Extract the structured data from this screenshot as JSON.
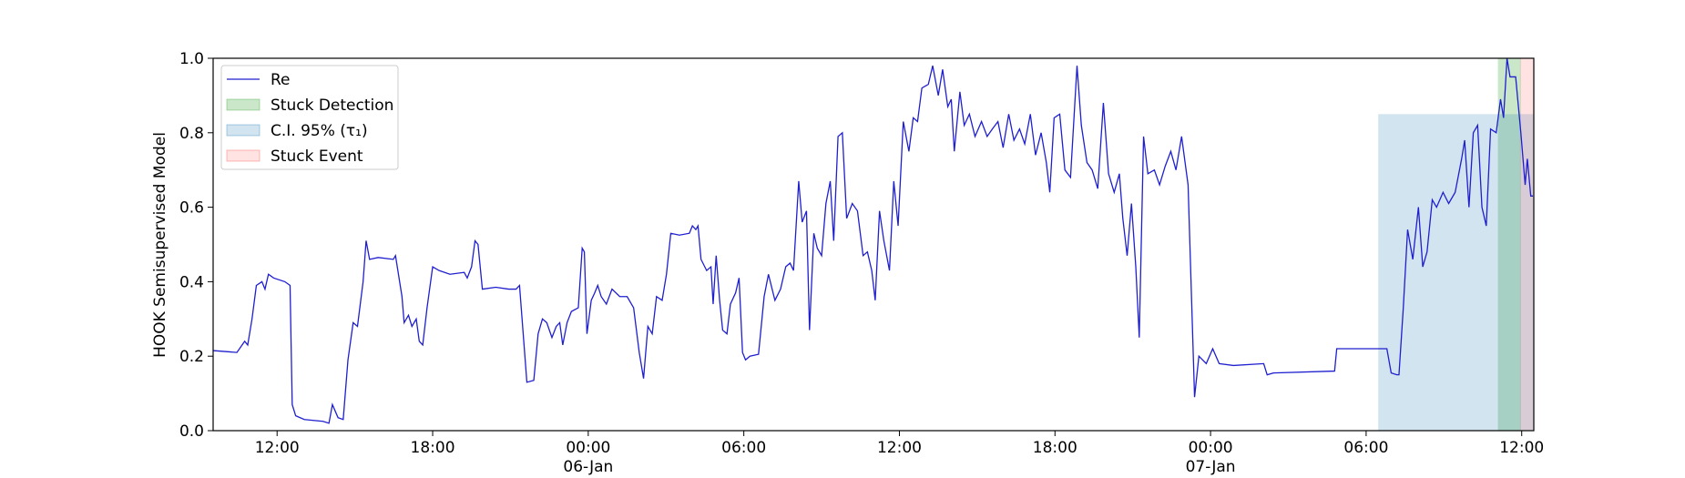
{
  "chart_data": {
    "type": "line",
    "ylabel": "HOOK Semisupervised Model",
    "xlim": [
      "1900-01-05 09:32",
      "1900-01-07 12:28"
    ],
    "xticks": [
      {
        "value": "1900-01-05 12:00",
        "label": "12:00"
      },
      {
        "value": "1900-01-05 18:00",
        "label": "18:00"
      },
      {
        "value": "1900-01-06 00:00",
        "label": "00:00\n06-Jan\n1900"
      },
      {
        "value": "1900-01-06 06:00",
        "label": "06:00"
      },
      {
        "value": "1900-01-06 12:00",
        "label": "12:00"
      },
      {
        "value": "1900-01-06 18:00",
        "label": "18:00"
      },
      {
        "value": "1900-01-07 00:00",
        "label": "00:00\n07-Jan"
      },
      {
        "value": "1900-01-07 06:00",
        "label": "06:00"
      },
      {
        "value": "1900-01-07 12:00",
        "label": "12:00"
      }
    ],
    "ylim": [
      0,
      1
    ],
    "yticks": [
      {
        "value": 0,
        "label": "0.0"
      },
      {
        "value": 0.2,
        "label": "0.2"
      },
      {
        "value": 0.4,
        "label": "0.4"
      },
      {
        "value": 0.6,
        "label": "0.6"
      },
      {
        "value": 0.8,
        "label": "0.8"
      },
      {
        "value": 1,
        "label": "1.0"
      }
    ],
    "legend": "upper left",
    "series": [
      {
        "name": "Re",
        "color": "#1f1fcf",
        "x": [
          "1900-01-05 09:32",
          "1900-01-05 10:27",
          "1900-01-05 10:45",
          "1900-01-05 10:52",
          "1900-01-05 11:02",
          "1900-01-05 11:12",
          "1900-01-05 11:25",
          "1900-01-05 11:32",
          "1900-01-05 11:40",
          "1900-01-05 11:52",
          "1900-01-05 12:18",
          "1900-01-05 12:30",
          "1900-01-05 12:35",
          "1900-01-05 12:43",
          "1900-01-05 13:03",
          "1900-01-05 13:46",
          "1900-01-05 14:00",
          "1900-01-05 14:08",
          "1900-01-05 14:21",
          "1900-01-05 14:33",
          "1900-01-05 14:44",
          "1900-01-05 14:56",
          "1900-01-05 15:06",
          "1900-01-05 15:19",
          "1900-01-05 15:26",
          "1900-01-05 15:34",
          "1900-01-05 15:54",
          "1900-01-05 16:29",
          "1900-01-05 16:34",
          "1900-01-05 16:49",
          "1900-01-05 16:54",
          "1900-01-05 17:04",
          "1900-01-05 17:12",
          "1900-01-05 17:22",
          "1900-01-05 17:29",
          "1900-01-05 17:37",
          "1900-01-05 17:47",
          "1900-01-05 18:00",
          "1900-01-05 18:15",
          "1900-01-05 18:40",
          "1900-01-05 19:13",
          "1900-01-05 19:20",
          "1900-01-05 19:30",
          "1900-01-05 19:38",
          "1900-01-05 19:45",
          "1900-01-05 19:55",
          "1900-01-05 20:26",
          "1900-01-05 20:56",
          "1900-01-05 21:13",
          "1900-01-05 21:21",
          "1900-01-05 21:38",
          "1900-01-05 21:54",
          "1900-01-05 22:04",
          "1900-01-05 22:14",
          "1900-01-05 22:24",
          "1900-01-05 22:36",
          "1900-01-05 22:46",
          "1900-01-05 22:54",
          "1900-01-05 23:01",
          "1900-01-05 23:11",
          "1900-01-05 23:21",
          "1900-01-05 23:37",
          "1900-01-05 23:46",
          "1900-01-05 23:51",
          "1900-01-05 23:57",
          "1900-01-06 00:07",
          "1900-01-06 00:15",
          "1900-01-06 00:22",
          "1900-01-06 00:30",
          "1900-01-06 00:42",
          "1900-01-06 00:55",
          "1900-01-06 01:13",
          "1900-01-06 01:30",
          "1900-01-06 01:45",
          "1900-01-06 01:58",
          "1900-01-06 02:08",
          "1900-01-06 02:18",
          "1900-01-06 02:28",
          "1900-01-06 02:38",
          "1900-01-06 02:51",
          "1900-01-06 03:01",
          "1900-01-06 03:11",
          "1900-01-06 03:31",
          "1900-01-06 03:54",
          "1900-01-06 04:01",
          "1900-01-06 04:09",
          "1900-01-06 04:14",
          "1900-01-06 04:21",
          "1900-01-06 04:34",
          "1900-01-06 04:44",
          "1900-01-06 04:49",
          "1900-01-06 04:56",
          "1900-01-06 05:04",
          "1900-01-06 05:11",
          "1900-01-06 05:21",
          "1900-01-06 05:29",
          "1900-01-06 05:41",
          "1900-01-06 05:49",
          "1900-01-06 05:57",
          "1900-01-06 06:04",
          "1900-01-06 06:14",
          "1900-01-06 06:34",
          "1900-01-06 06:47",
          "1900-01-06 06:57",
          "1900-01-06 07:12",
          "1900-01-06 07:25",
          "1900-01-06 07:37",
          "1900-01-06 07:47",
          "1900-01-06 07:55",
          "1900-01-06 08:07",
          "1900-01-06 08:15",
          "1900-01-06 08:25",
          "1900-01-06 08:32",
          "1900-01-06 08:42",
          "1900-01-06 08:50",
          "1900-01-06 09:00",
          "1900-01-06 09:10",
          "1900-01-06 09:20",
          "1900-01-06 09:28",
          "1900-01-06 09:38",
          "1900-01-06 09:48",
          "1900-01-06 09:58",
          "1900-01-06 10:11",
          "1900-01-06 10:23",
          "1900-01-06 10:36",
          "1900-01-06 10:46",
          "1900-01-06 10:56",
          "1900-01-06 11:04",
          "1900-01-06 11:14",
          "1900-01-06 11:24",
          "1900-01-06 11:37",
          "1900-01-06 11:47",
          "1900-01-06 11:57",
          "1900-01-06 12:09",
          "1900-01-06 12:22",
          "1900-01-06 12:32",
          "1900-01-06 12:42",
          "1900-01-06 12:52",
          "1900-01-06 13:07",
          "1900-01-06 13:17",
          "1900-01-06 13:30",
          "1900-01-06 13:40",
          "1900-01-06 13:52",
          "1900-01-06 14:00",
          "1900-01-06 14:07",
          "1900-01-06 14:20",
          "1900-01-06 14:30",
          "1900-01-06 14:42",
          "1900-01-06 14:55",
          "1900-01-06 15:10",
          "1900-01-06 15:23",
          "1900-01-06 15:35",
          "1900-01-06 15:48",
          "1900-01-06 16:00",
          "1900-01-06 16:13",
          "1900-01-06 16:25",
          "1900-01-06 16:38",
          "1900-01-06 16:50",
          "1900-01-06 17:03",
          "1900-01-06 17:15",
          "1900-01-06 17:28",
          "1900-01-06 17:40",
          "1900-01-06 17:48",
          "1900-01-06 17:58",
          "1900-01-06 18:11",
          "1900-01-06 18:23",
          "1900-01-06 18:36",
          "1900-01-06 18:51",
          "1900-01-06 19:01",
          "1900-01-06 19:14",
          "1900-01-06 19:26",
          "1900-01-06 19:39",
          "1900-01-06 19:52",
          "1900-01-06 20:04",
          "1900-01-06 20:17",
          "1900-01-06 20:29",
          "1900-01-06 20:37",
          "1900-01-06 20:47",
          "1900-01-06 20:57",
          "1900-01-06 21:07",
          "1900-01-06 21:15",
          "1900-01-06 21:25",
          "1900-01-06 21:35",
          "1900-01-06 21:50",
          "1900-01-06 22:02",
          "1900-01-06 22:15",
          "1900-01-06 22:28",
          "1900-01-06 22:40",
          "1900-01-06 22:53",
          "1900-01-06 23:08",
          "1900-01-06 23:23",
          "1900-01-06 23:33",
          "1900-01-06 23:50",
          "1900-01-07 00:05",
          "1900-01-07 00:20",
          "1900-01-07 00:53",
          "1900-01-07 02:03",
          "1900-01-07 02:11",
          "1900-01-07 02:26",
          "1900-01-07 04:47",
          "1900-01-07 04:52",
          "1900-01-07 06:48",
          "1900-01-07 06:58",
          "1900-01-07 07:11",
          "1900-01-07 07:16",
          "1900-01-07 07:26",
          "1900-01-07 07:36",
          "1900-01-07 07:48",
          "1900-01-07 08:01",
          "1900-01-07 08:11",
          "1900-01-07 08:21",
          "1900-01-07 08:33",
          "1900-01-07 08:43",
          "1900-01-07 08:58",
          "1900-01-07 09:11",
          "1900-01-07 09:26",
          "1900-01-07 09:41",
          "1900-01-07 09:48",
          "1900-01-07 09:58",
          "1900-01-07 10:08",
          "1900-01-07 10:18",
          "1900-01-07 10:28",
          "1900-01-07 10:38",
          "1900-01-07 10:48",
          "1900-01-07 11:01",
          "1900-01-07 11:11",
          "1900-01-07 11:18",
          "1900-01-07 11:26",
          "1900-01-07 11:33",
          "1900-01-07 11:46",
          "1900-01-07 11:58",
          "1900-01-07 12:08",
          "1900-01-07 12:13",
          "1900-01-07 12:21",
          "1900-01-07 12:26"
        ],
        "values": [
          0.215,
          0.21,
          0.24,
          0.23,
          0.3,
          0.39,
          0.4,
          0.38,
          0.42,
          0.41,
          0.4,
          0.39,
          0.07,
          0.04,
          0.03,
          0.025,
          0.02,
          0.07,
          0.035,
          0.03,
          0.19,
          0.29,
          0.28,
          0.4,
          0.51,
          0.46,
          0.465,
          0.46,
          0.47,
          0.36,
          0.29,
          0.31,
          0.28,
          0.3,
          0.24,
          0.23,
          0.33,
          0.44,
          0.43,
          0.42,
          0.425,
          0.41,
          0.44,
          0.51,
          0.5,
          0.38,
          0.385,
          0.38,
          0.38,
          0.39,
          0.13,
          0.135,
          0.26,
          0.3,
          0.29,
          0.25,
          0.28,
          0.29,
          0.23,
          0.29,
          0.32,
          0.33,
          0.49,
          0.48,
          0.26,
          0.35,
          0.37,
          0.39,
          0.36,
          0.34,
          0.38,
          0.36,
          0.36,
          0.33,
          0.21,
          0.14,
          0.28,
          0.26,
          0.36,
          0.35,
          0.42,
          0.53,
          0.525,
          0.53,
          0.55,
          0.54,
          0.55,
          0.46,
          0.43,
          0.44,
          0.34,
          0.47,
          0.35,
          0.27,
          0.26,
          0.34,
          0.37,
          0.41,
          0.21,
          0.19,
          0.2,
          0.205,
          0.36,
          0.42,
          0.35,
          0.38,
          0.44,
          0.45,
          0.43,
          0.67,
          0.56,
          0.59,
          0.27,
          0.53,
          0.49,
          0.47,
          0.61,
          0.67,
          0.51,
          0.79,
          0.8,
          0.57,
          0.61,
          0.59,
          0.47,
          0.48,
          0.43,
          0.35,
          0.59,
          0.51,
          0.43,
          0.67,
          0.55,
          0.83,
          0.75,
          0.84,
          0.83,
          0.92,
          0.93,
          0.98,
          0.9,
          0.97,
          0.87,
          0.89,
          0.75,
          0.91,
          0.82,
          0.85,
          0.79,
          0.83,
          0.79,
          0.81,
          0.83,
          0.76,
          0.85,
          0.78,
          0.81,
          0.77,
          0.85,
          0.74,
          0.8,
          0.72,
          0.64,
          0.84,
          0.85,
          0.7,
          0.68,
          0.98,
          0.82,
          0.72,
          0.7,
          0.65,
          0.88,
          0.69,
          0.64,
          0.69,
          0.57,
          0.47,
          0.61,
          0.44,
          0.25,
          0.79,
          0.69,
          0.7,
          0.66,
          0.71,
          0.75,
          0.7,
          0.79,
          0.66,
          0.09,
          0.2,
          0.18,
          0.22,
          0.18,
          0.175,
          0.18,
          0.15,
          0.155,
          0.16,
          0.22,
          0.22,
          0.155,
          0.15,
          0.15,
          0.33,
          0.54,
          0.46,
          0.6,
          0.44,
          0.48,
          0.62,
          0.6,
          0.64,
          0.61,
          0.64,
          0.73,
          0.78,
          0.6,
          0.8,
          0.82,
          0.6,
          0.55,
          0.81,
          0.8,
          0.89,
          0.84,
          1.0,
          0.95,
          0.95,
          0.8,
          0.66,
          0.73,
          0.63,
          0.63
        ]
      }
    ],
    "spans": [
      {
        "name": "Stuck Detection",
        "color": "#2ca02c",
        "alpha": 0.25,
        "start": "1900-01-07 11:05",
        "end": "1900-01-07 11:58"
      },
      {
        "name": "C.I. 95% (τ₁)",
        "color": "#1f77b4",
        "alpha": 0.2,
        "start": "1900-01-07 06:28",
        "end": "1900-01-07 12:28",
        "ymax": 0.85
      },
      {
        "name": "Stuck Event",
        "color": "#ff4040",
        "alpha": 0.15,
        "start": "1900-01-07 11:56",
        "end": "1900-01-07 12:28"
      }
    ]
  }
}
